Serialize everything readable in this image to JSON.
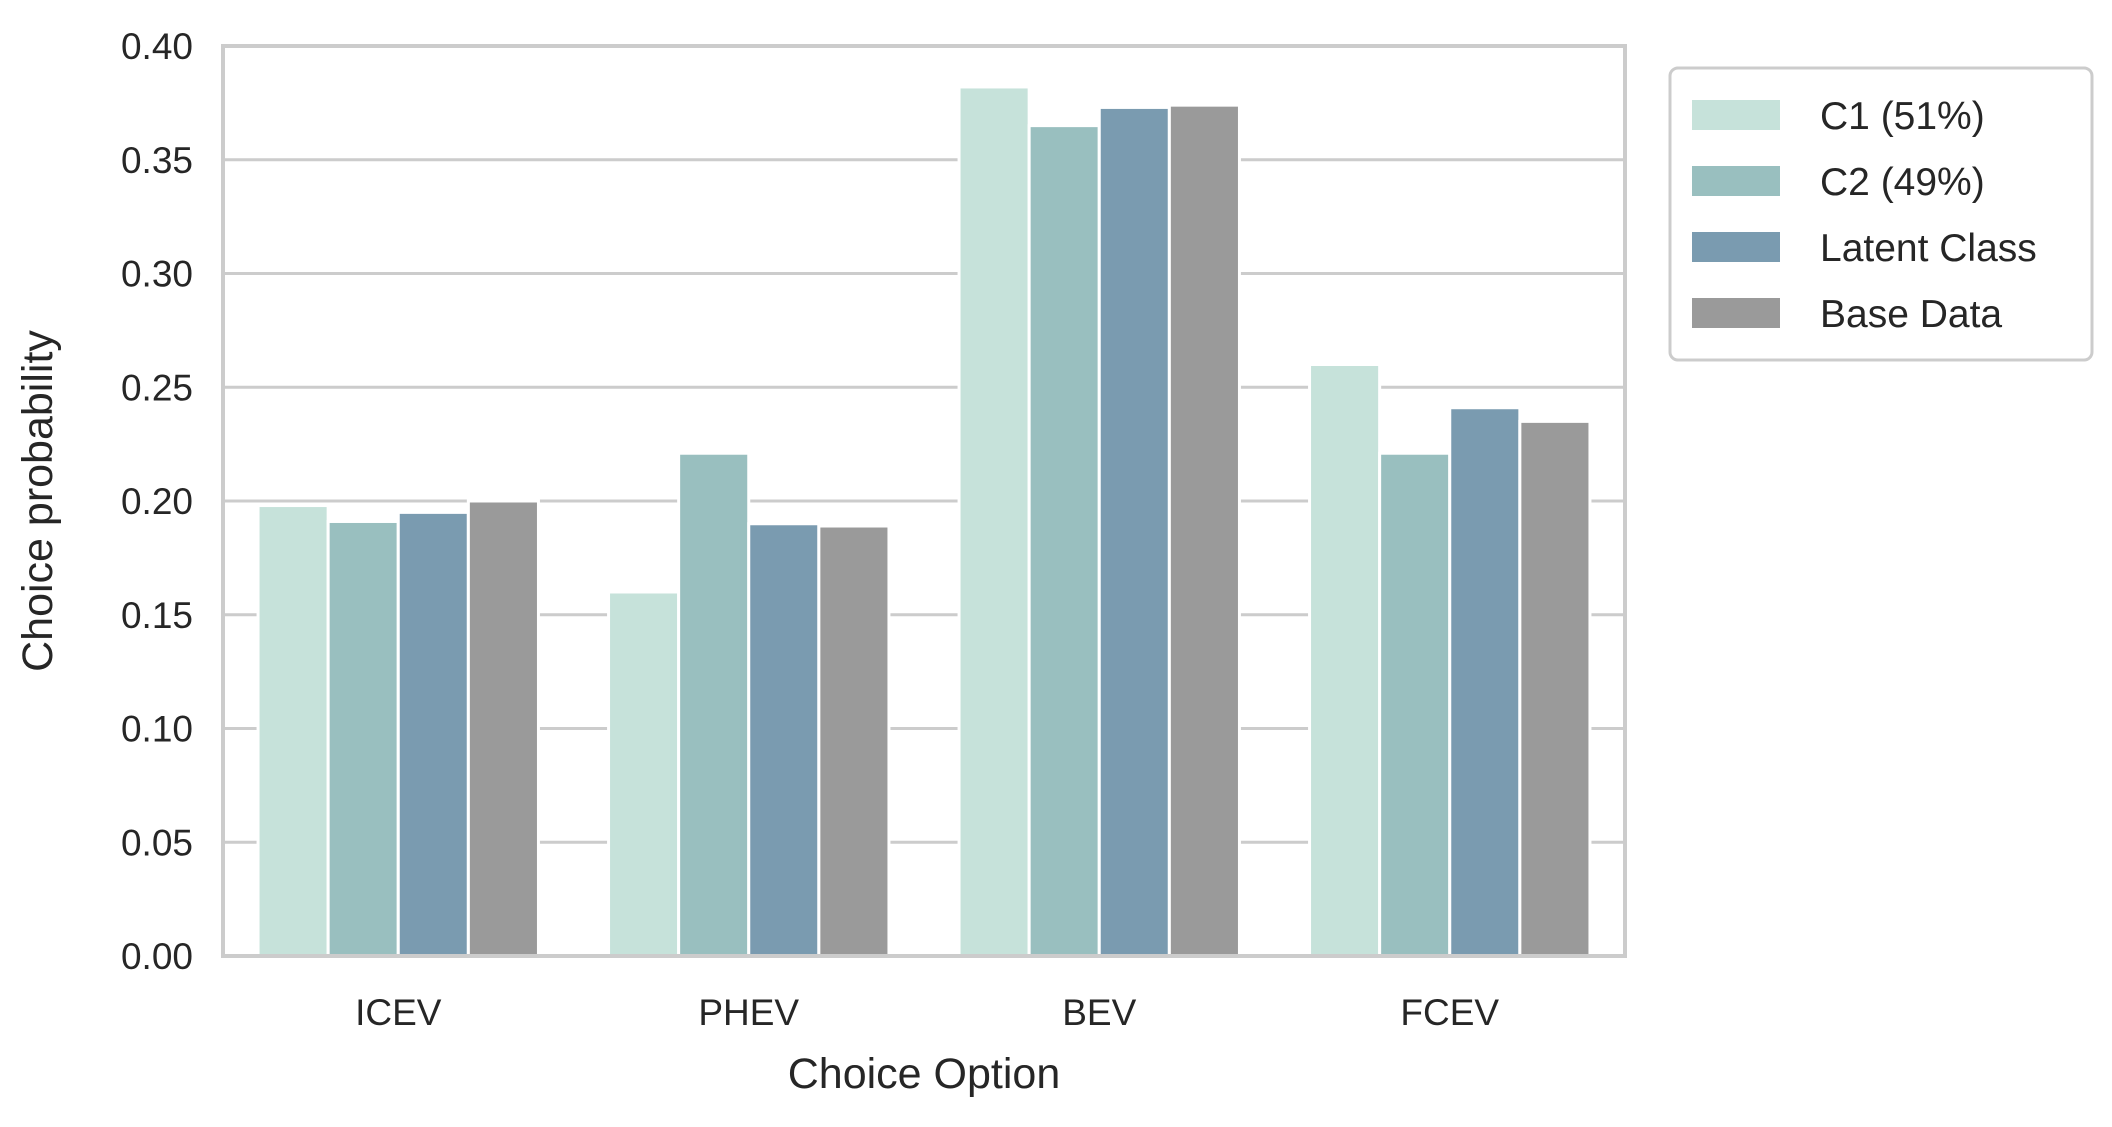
{
  "chart_data": {
    "type": "bar",
    "xlabel": "Choice Option",
    "ylabel": "Choice probability",
    "ylim": [
      0,
      0.4
    ],
    "yticks": [
      "0.00",
      "0.05",
      "0.10",
      "0.15",
      "0.20",
      "0.25",
      "0.30",
      "0.35",
      "0.40"
    ],
    "categories": [
      "ICEV",
      "PHEV",
      "BEV",
      "FCEV"
    ],
    "series": [
      {
        "name": "C1 (51%)",
        "color": "#c6e2da",
        "values": [
          0.198,
          0.16,
          0.382,
          0.26
        ]
      },
      {
        "name": "C2 (49%)",
        "color": "#99bfbf",
        "values": [
          0.191,
          0.221,
          0.365,
          0.221
        ]
      },
      {
        "name": "Latent Class",
        "color": "#7a9bb0",
        "values": [
          0.195,
          0.19,
          0.373,
          0.241
        ]
      },
      {
        "name": "Base Data",
        "color": "#9a9a9a",
        "values": [
          0.2,
          0.189,
          0.374,
          0.235
        ]
      }
    ],
    "grid": "horizontal",
    "legend_position": "outside-top-right"
  }
}
